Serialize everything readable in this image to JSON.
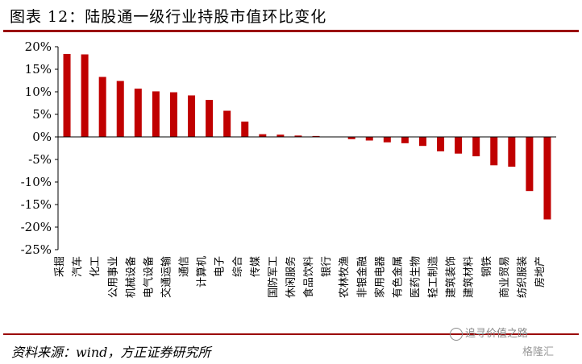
{
  "header": {
    "title": "图表 12：陆股通一级行业持股市值环比变化"
  },
  "footer": {
    "source": "资料来源：wind，方正证券研究所",
    "watermark": "追寻价值之路",
    "watermark2": "格隆汇"
  },
  "chart_data": {
    "type": "bar",
    "categories": [
      "采掘",
      "汽车",
      "化工",
      "公用事业",
      "机械设备",
      "电气设备",
      "交通运输",
      "通信",
      "计算机",
      "电子",
      "综合",
      "传媒",
      "国防军工",
      "休闲服务",
      "食品饮料",
      "银行",
      "农林牧渔",
      "非银金融",
      "家用电器",
      "有色金属",
      "医药生物",
      "轻工制造",
      "建筑装饰",
      "建筑材料",
      "钢铁",
      "商业贸易",
      "纺织服装",
      "房地产"
    ],
    "values": [
      18.4,
      18.3,
      13.3,
      12.4,
      10.7,
      10.1,
      9.9,
      9.2,
      8.2,
      5.8,
      3.4,
      0.6,
      0.5,
      0.3,
      0.2,
      0.0,
      -0.5,
      -0.8,
      -1.2,
      -1.4,
      -2.0,
      -3.2,
      -3.7,
      -4.3,
      -6.3,
      -6.6,
      -12.0,
      -18.3
    ],
    "ylim": [
      -25,
      20
    ],
    "yticks": [
      "20%",
      "15%",
      "10%",
      "5%",
      "0%",
      "-5%",
      "-10%",
      "-15%",
      "-20%",
      "-25%"
    ],
    "ytick_values": [
      20,
      15,
      10,
      5,
      0,
      -5,
      -10,
      -15,
      -20,
      -25
    ],
    "bar_color": "#c00000",
    "grid": false
  }
}
